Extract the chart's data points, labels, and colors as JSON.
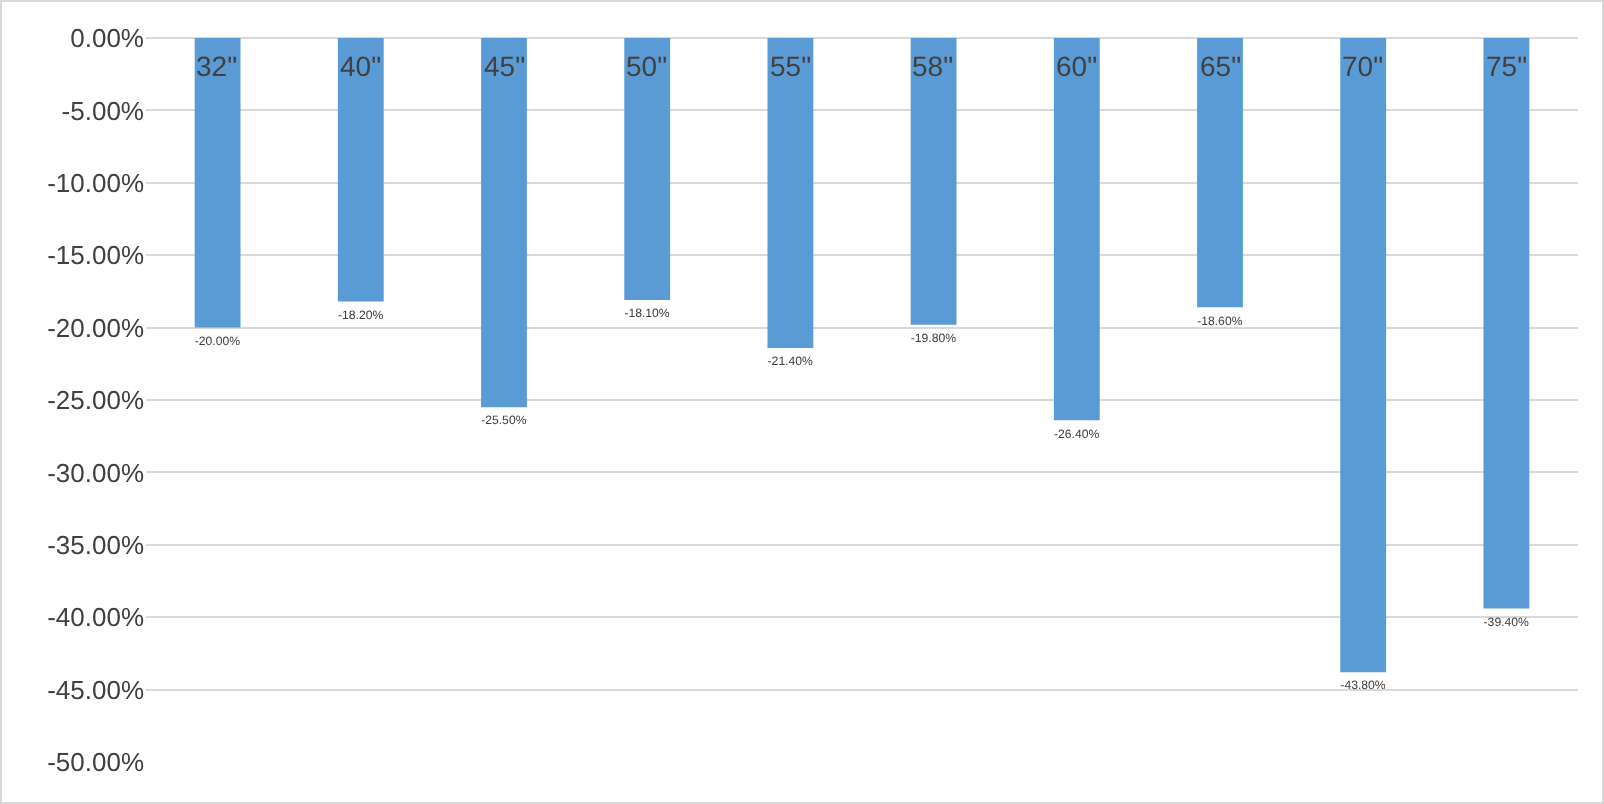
{
  "chart_data": {
    "type": "bar",
    "categories": [
      "32\"",
      "40\"",
      "45\"",
      "50\"",
      "55\"",
      "58\"",
      "60\"",
      "65\"",
      "70\"",
      "75\""
    ],
    "values": [
      -20.0,
      -18.2,
      -25.5,
      -18.1,
      -21.4,
      -19.8,
      -26.4,
      -18.6,
      -43.8,
      -39.4
    ],
    "value_labels": [
      "-20.00%",
      "-18.20%",
      "-25.50%",
      "-18.10%",
      "-21.40%",
      "-19.80%",
      "-26.40%",
      "-18.60%",
      "-43.80%",
      "-39.40%"
    ],
    "color": "#5b9bd5",
    "ylim": [
      -50,
      0
    ],
    "yticks": [
      {
        "value": 0,
        "label": "0.00%"
      },
      {
        "value": -5,
        "label": "-5.00%"
      },
      {
        "value": -10,
        "label": "-10.00%"
      },
      {
        "value": -15,
        "label": "-15.00%"
      },
      {
        "value": -20,
        "label": "-20.00%"
      },
      {
        "value": -25,
        "label": "-25.00%"
      },
      {
        "value": -30,
        "label": "-30.00%"
      },
      {
        "value": -35,
        "label": "-35.00%"
      },
      {
        "value": -40,
        "label": "-40.00%"
      },
      {
        "value": -45,
        "label": "-45.00%"
      },
      {
        "value": -50,
        "label": "-50.00%"
      }
    ],
    "grid": "y",
    "legend": false
  }
}
